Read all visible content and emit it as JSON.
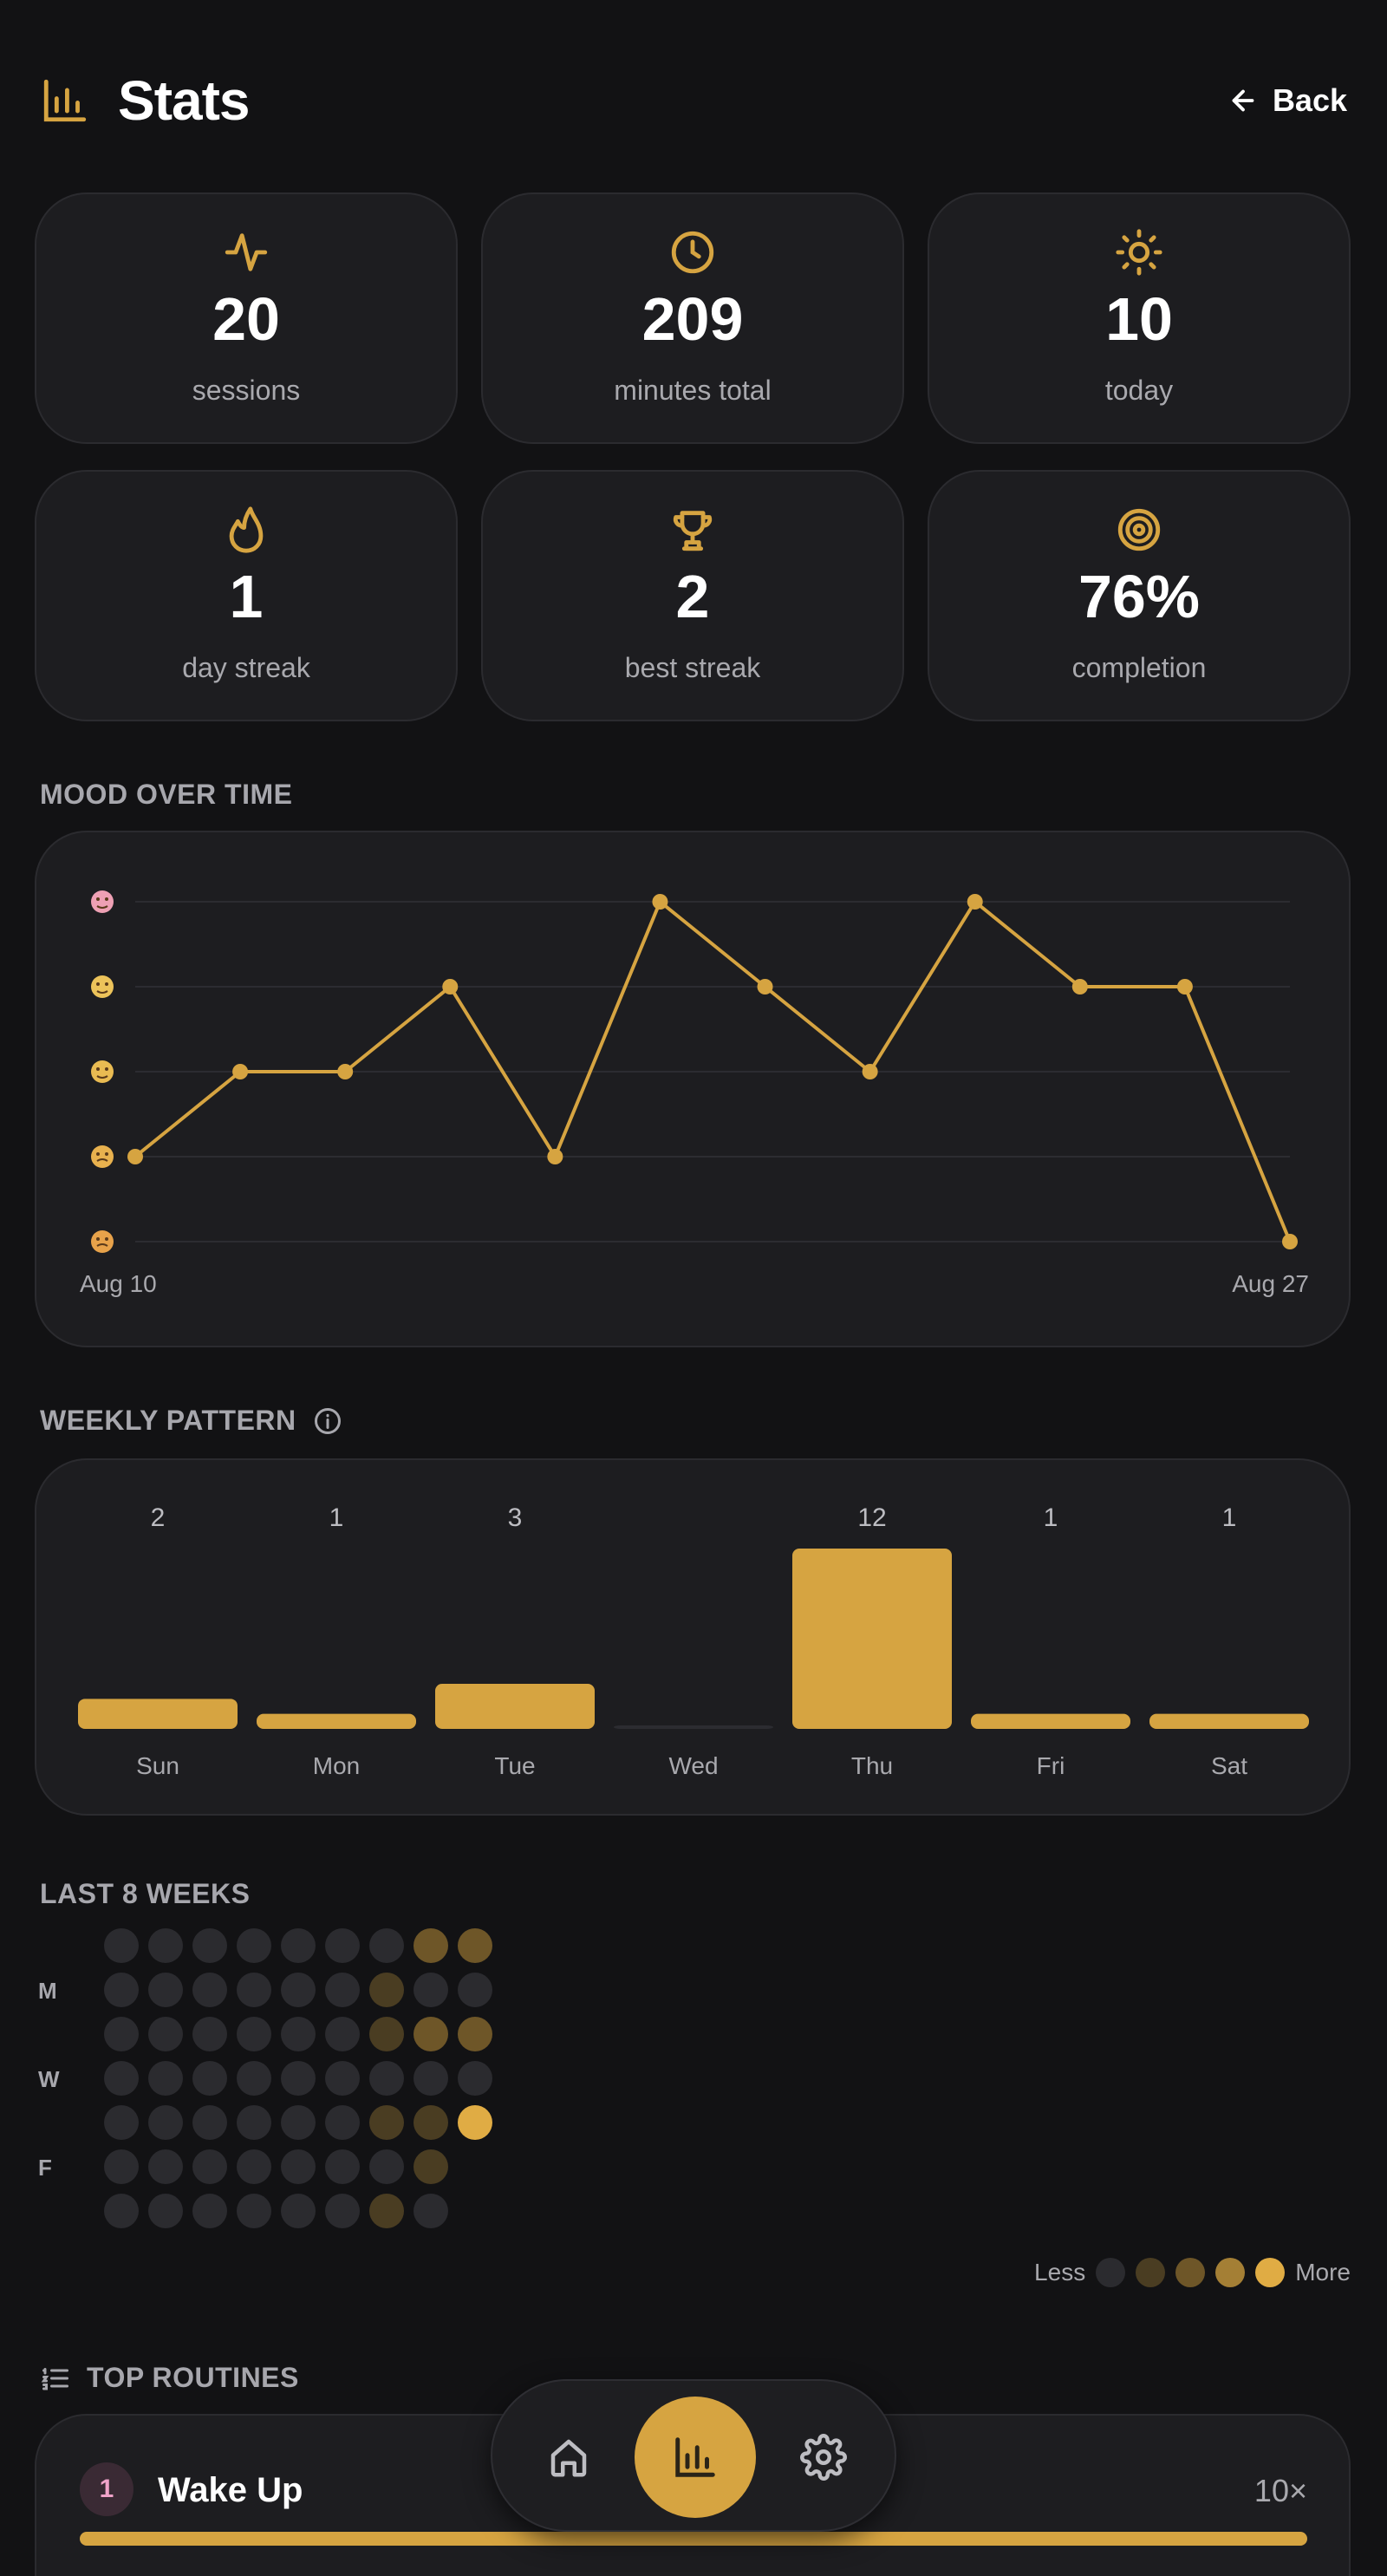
{
  "header": {
    "title": "Stats",
    "title_icon": "bar-chart-icon",
    "back_label": "Back"
  },
  "stats": [
    {
      "value": "20",
      "label": "sessions",
      "icon": "activity-icon"
    },
    {
      "value": "209",
      "label": "minutes total",
      "icon": "clock-icon"
    },
    {
      "value": "10",
      "label": "today",
      "icon": "sun-icon"
    },
    {
      "value": "1",
      "label": "day streak",
      "icon": "flame-icon"
    },
    {
      "value": "2",
      "label": "best streak",
      "icon": "trophy-icon"
    },
    {
      "value": "76%",
      "label": "completion",
      "icon": "target-icon"
    }
  ],
  "mood": {
    "section_title": "MOOD OVER TIME",
    "start_label": "Aug 10",
    "end_label": "Aug 27"
  },
  "weekly": {
    "section_title": "WEEKLY PATTERN"
  },
  "chart_data": [
    {
      "type": "line",
      "name": "mood",
      "y_levels": 5,
      "ylim": [
        1,
        5
      ],
      "values": [
        2,
        3,
        3,
        4,
        2,
        5,
        4,
        3,
        5,
        4,
        4,
        1
      ],
      "xlabel_start": "Aug 10",
      "xlabel_end": "Aug 27",
      "grid": true,
      "color": "#d6a441"
    },
    {
      "type": "bar",
      "name": "weekly",
      "categories": [
        "Sun",
        "Mon",
        "Tue",
        "Wed",
        "Thu",
        "Fri",
        "Sat"
      ],
      "values": [
        2,
        1,
        3,
        0,
        12,
        1,
        1
      ],
      "value_labels": [
        "2",
        "1",
        "3",
        "",
        "12",
        "1",
        "1"
      ],
      "color": "#d6a441"
    }
  ],
  "heatmap": {
    "section_title": "LAST 8 WEEKS",
    "row_labels": [
      "",
      "M",
      "",
      "W",
      "",
      "F",
      ""
    ],
    "levels": [
      [
        0,
        0,
        0,
        0,
        0,
        0,
        0,
        2,
        2
      ],
      [
        0,
        0,
        0,
        0,
        0,
        0,
        1,
        0,
        0
      ],
      [
        0,
        0,
        0,
        0,
        0,
        0,
        1,
        2,
        2
      ],
      [
        0,
        0,
        0,
        0,
        0,
        0,
        0,
        0,
        0
      ],
      [
        0,
        0,
        0,
        0,
        0,
        0,
        1,
        1,
        4
      ],
      [
        0,
        0,
        0,
        0,
        0,
        0,
        0,
        1,
        -1
      ],
      [
        0,
        0,
        0,
        0,
        0,
        0,
        1,
        0,
        -1
      ]
    ],
    "legend_less": "Less",
    "legend_more": "More",
    "colors": [
      "#2b2b2f",
      "#4a3d22",
      "#6e5628",
      "#a47f35",
      "#e0ac44"
    ]
  },
  "routines": {
    "section_title": "TOP ROUTINES",
    "items": [
      {
        "rank": "1",
        "name": "Wake Up",
        "count": "10×",
        "fraction": 1.0
      }
    ]
  },
  "nav": {
    "items": [
      "home-icon",
      "stats-icon",
      "settings-icon"
    ],
    "active": "stats-icon"
  }
}
